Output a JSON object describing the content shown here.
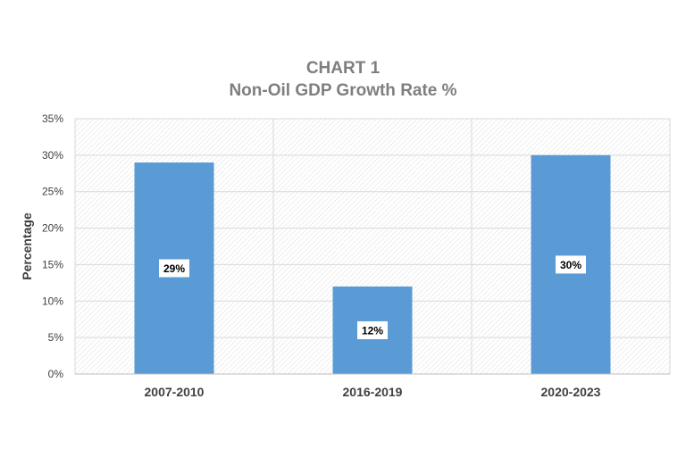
{
  "chart_data": {
    "type": "bar",
    "title": "CHART 1",
    "subtitle": "Non-Oil GDP Growth Rate %",
    "xlabel": "",
    "ylabel": "Percentage",
    "categories": [
      "2007-2010",
      "2016-2019",
      "2020-2023"
    ],
    "values": [
      29,
      12,
      30
    ],
    "data_labels": [
      "29%",
      "12%",
      "30%"
    ],
    "ylim": [
      0,
      35
    ],
    "y_ticks": [
      0,
      5,
      10,
      15,
      20,
      25,
      30,
      35
    ],
    "y_tick_labels": [
      "0%",
      "5%",
      "10%",
      "15%",
      "20%",
      "25%",
      "30%",
      "35%"
    ],
    "grid": true,
    "legend": "none",
    "colors": {
      "bar": "#5b9bd5",
      "title": "#7f7f7f",
      "grid": "#d9d9d9",
      "text": "#404040"
    }
  }
}
